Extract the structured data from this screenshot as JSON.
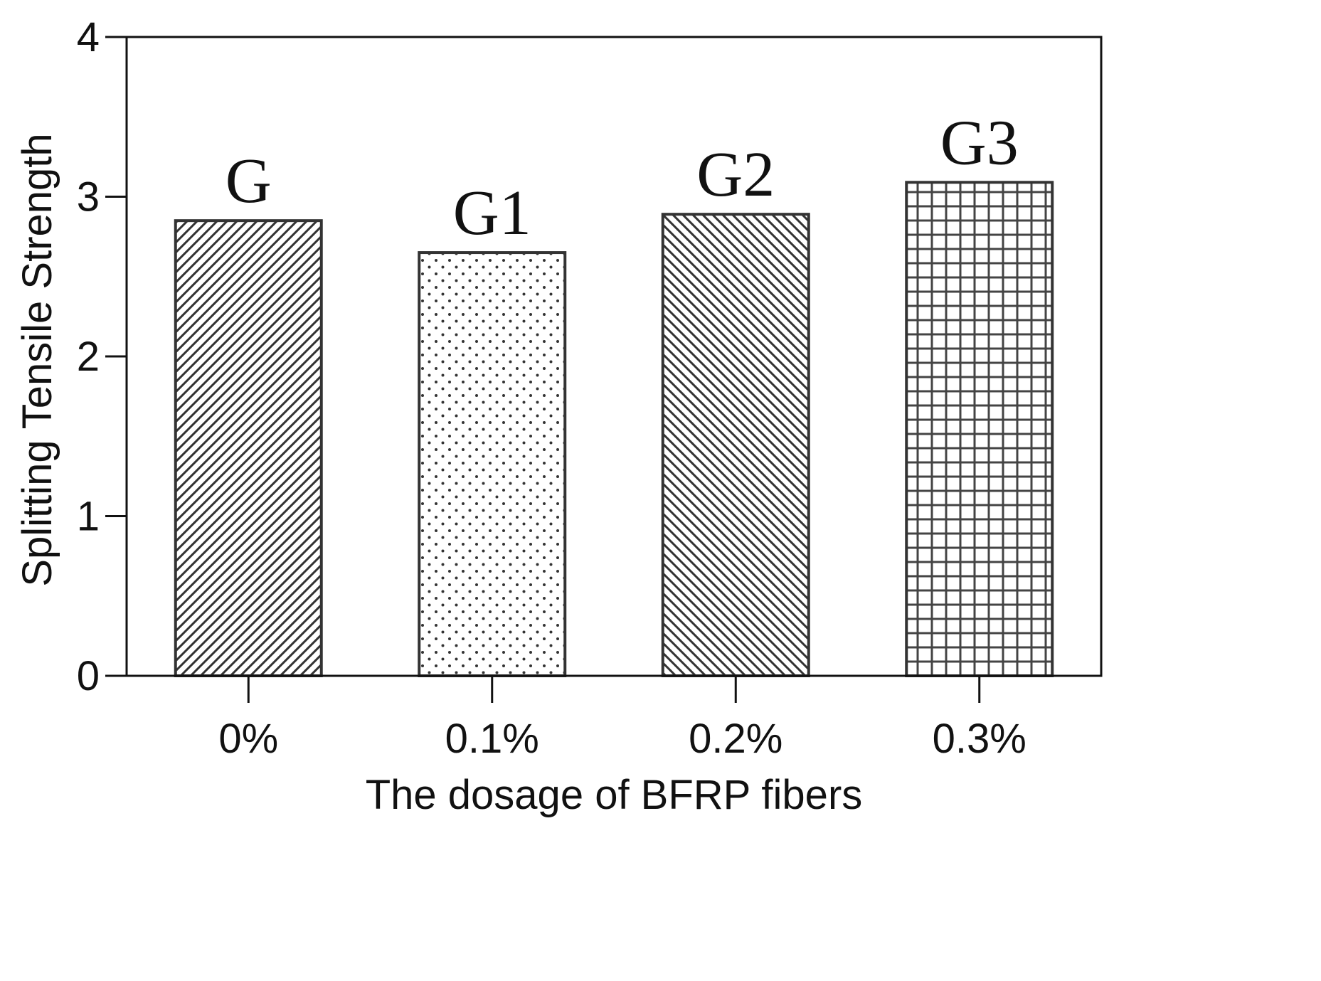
{
  "chart_data": {
    "type": "bar",
    "categories": [
      "0%",
      "0.1%",
      "0.2%",
      "0.3%"
    ],
    "values": [
      2.85,
      2.65,
      2.89,
      3.09
    ],
    "bar_labels": [
      "G",
      "G1",
      "G2",
      "G3"
    ],
    "bar_patterns": [
      "diagonal-right",
      "dots",
      "diagonal-left",
      "grid"
    ],
    "xlabel": "The dosage of BFRP fibers",
    "ylabel": "Splitting Tensile Strength",
    "ylim": [
      0,
      4
    ],
    "yticks": [
      0,
      1,
      2,
      3,
      4
    ],
    "grid": false,
    "colors": {
      "axis": "#111111",
      "bar_edge": "#333333",
      "pattern": "#333333",
      "background": "#ffffff"
    }
  }
}
